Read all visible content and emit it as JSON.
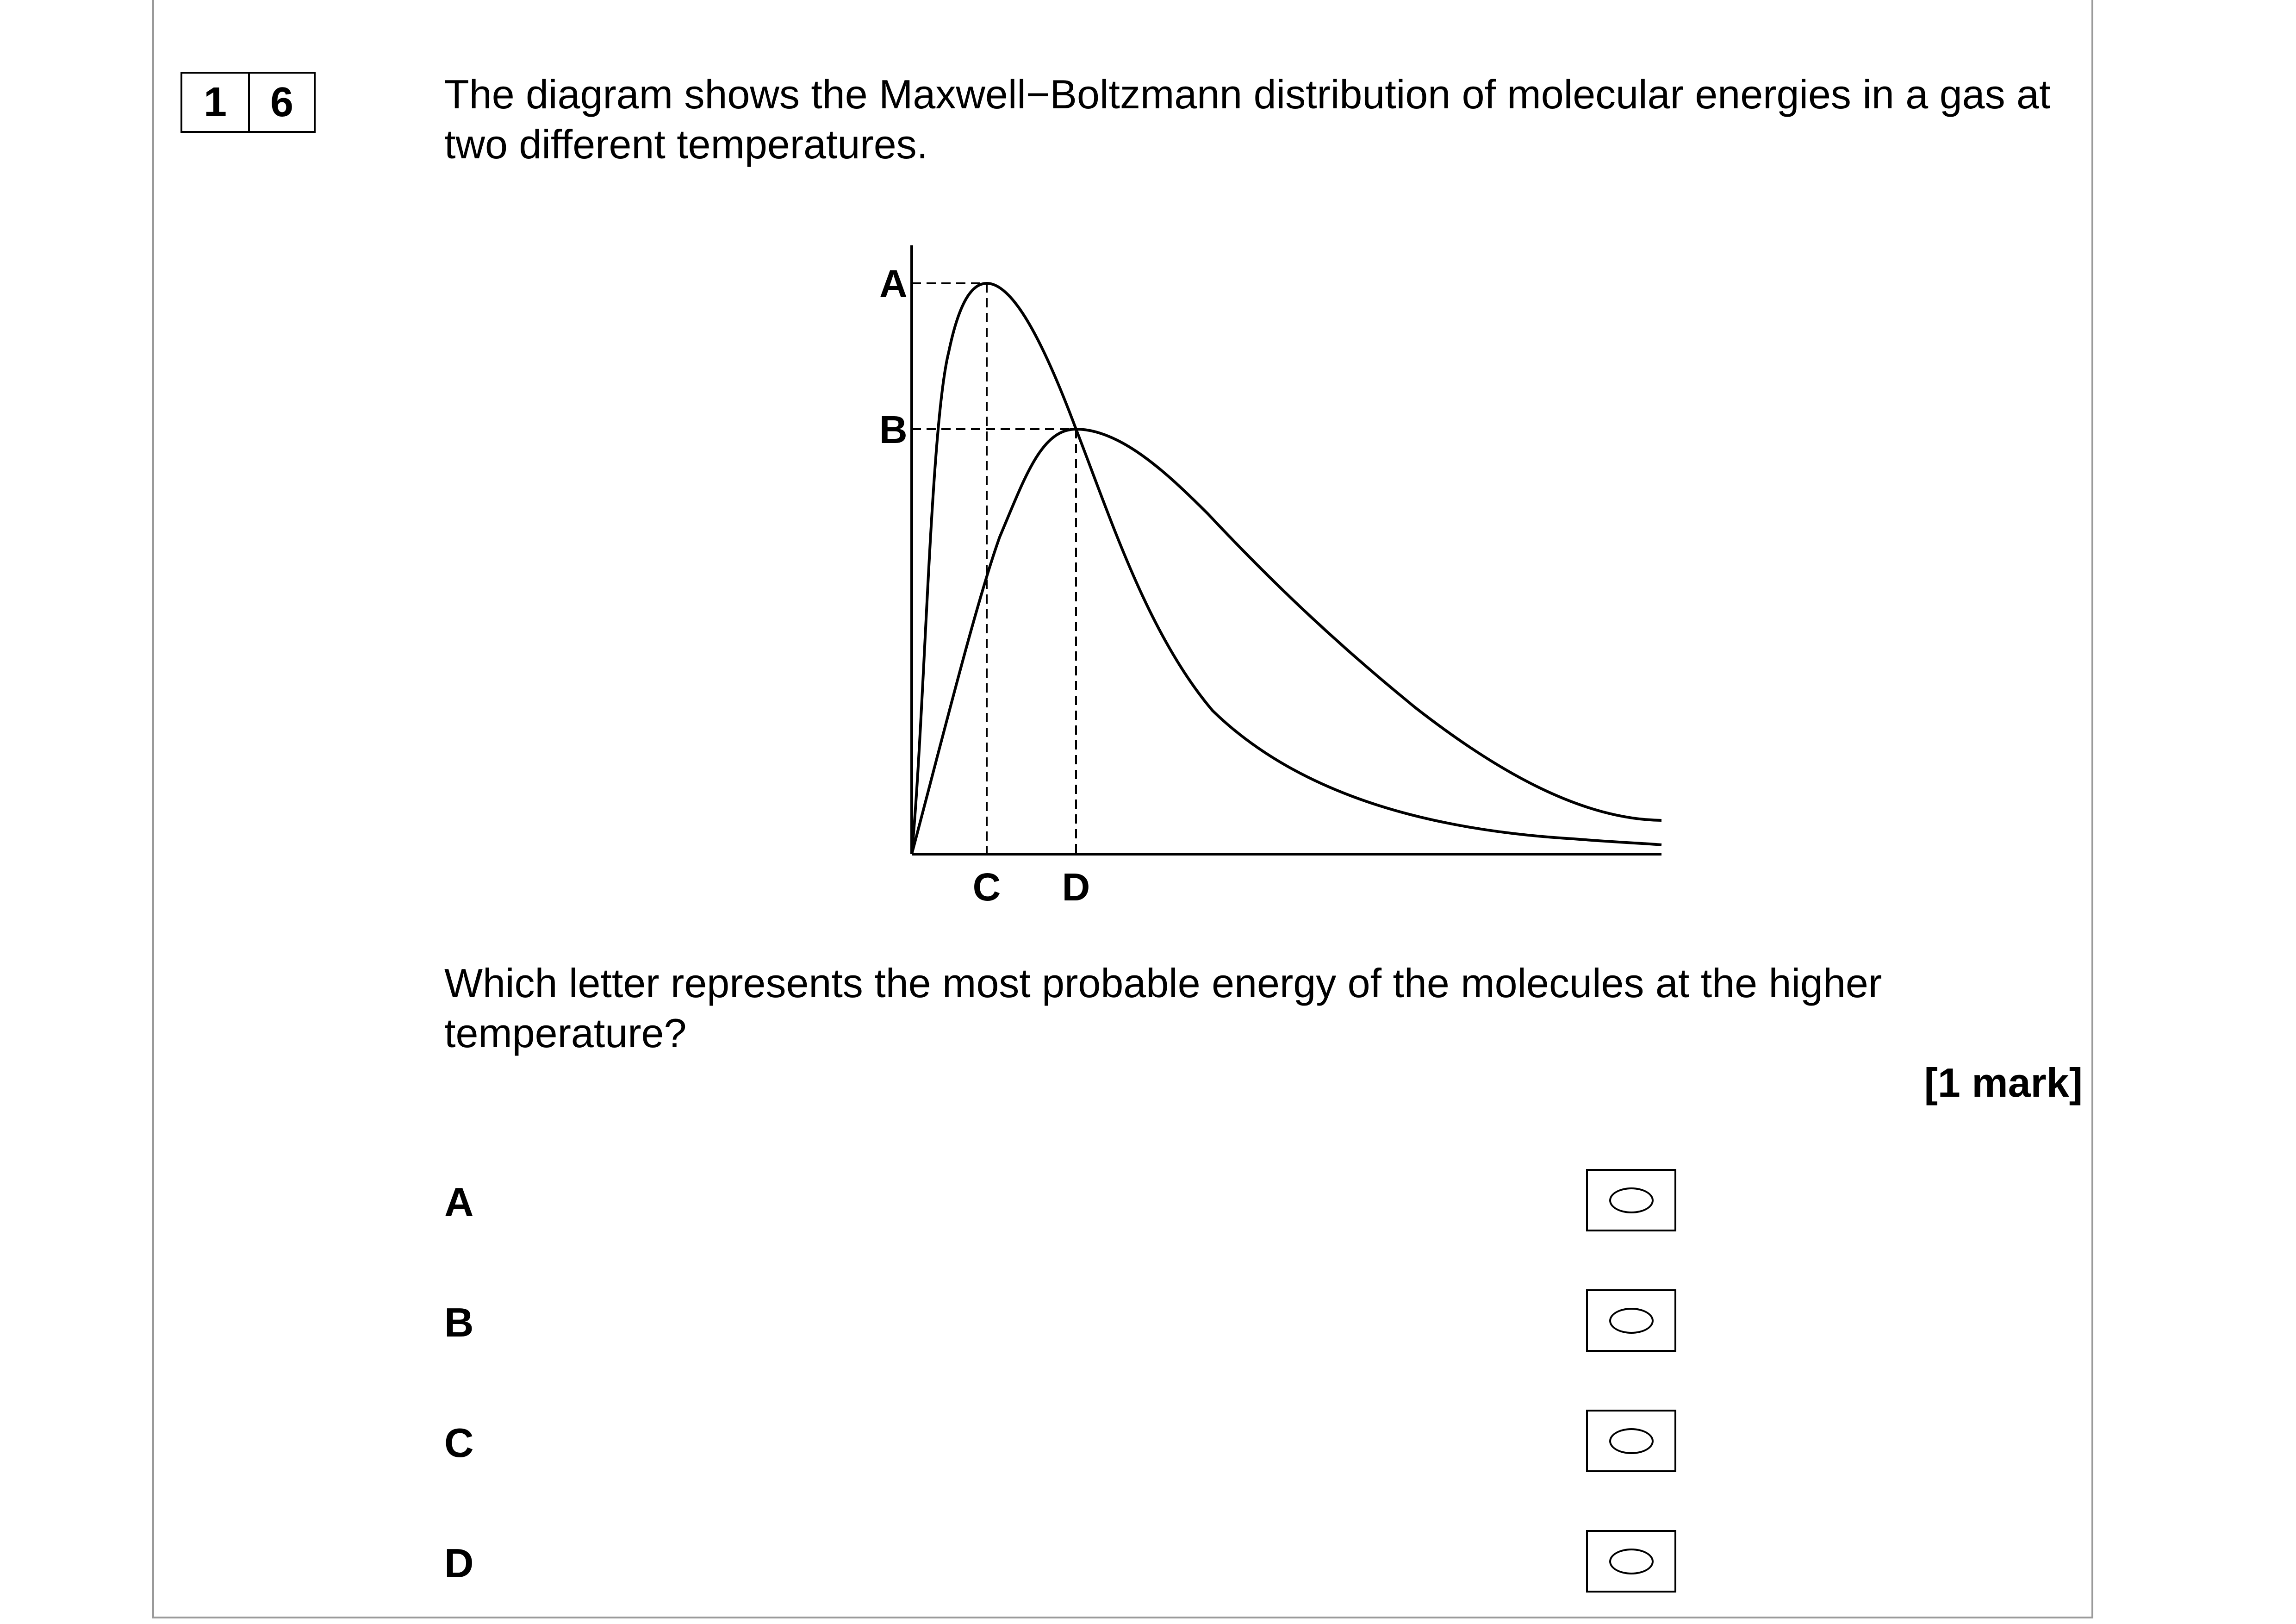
{
  "question_number": [
    "1",
    "6"
  ],
  "stem": "The diagram shows the Maxwell−Boltzmann distribution of molecular energies in a gas at two different temperatures.",
  "diagram": {
    "labels": {
      "a": "A",
      "b": "B",
      "c": "C",
      "d": "D"
    },
    "curves": [
      "lower-temperature-curve",
      "higher-temperature-curve"
    ]
  },
  "question": "Which letter represents the most probable energy of the molecules at the higher temperature?",
  "marks": "[1 mark]",
  "options": [
    {
      "letter": "A"
    },
    {
      "letter": "B"
    },
    {
      "letter": "C"
    },
    {
      "letter": "D"
    }
  ]
}
